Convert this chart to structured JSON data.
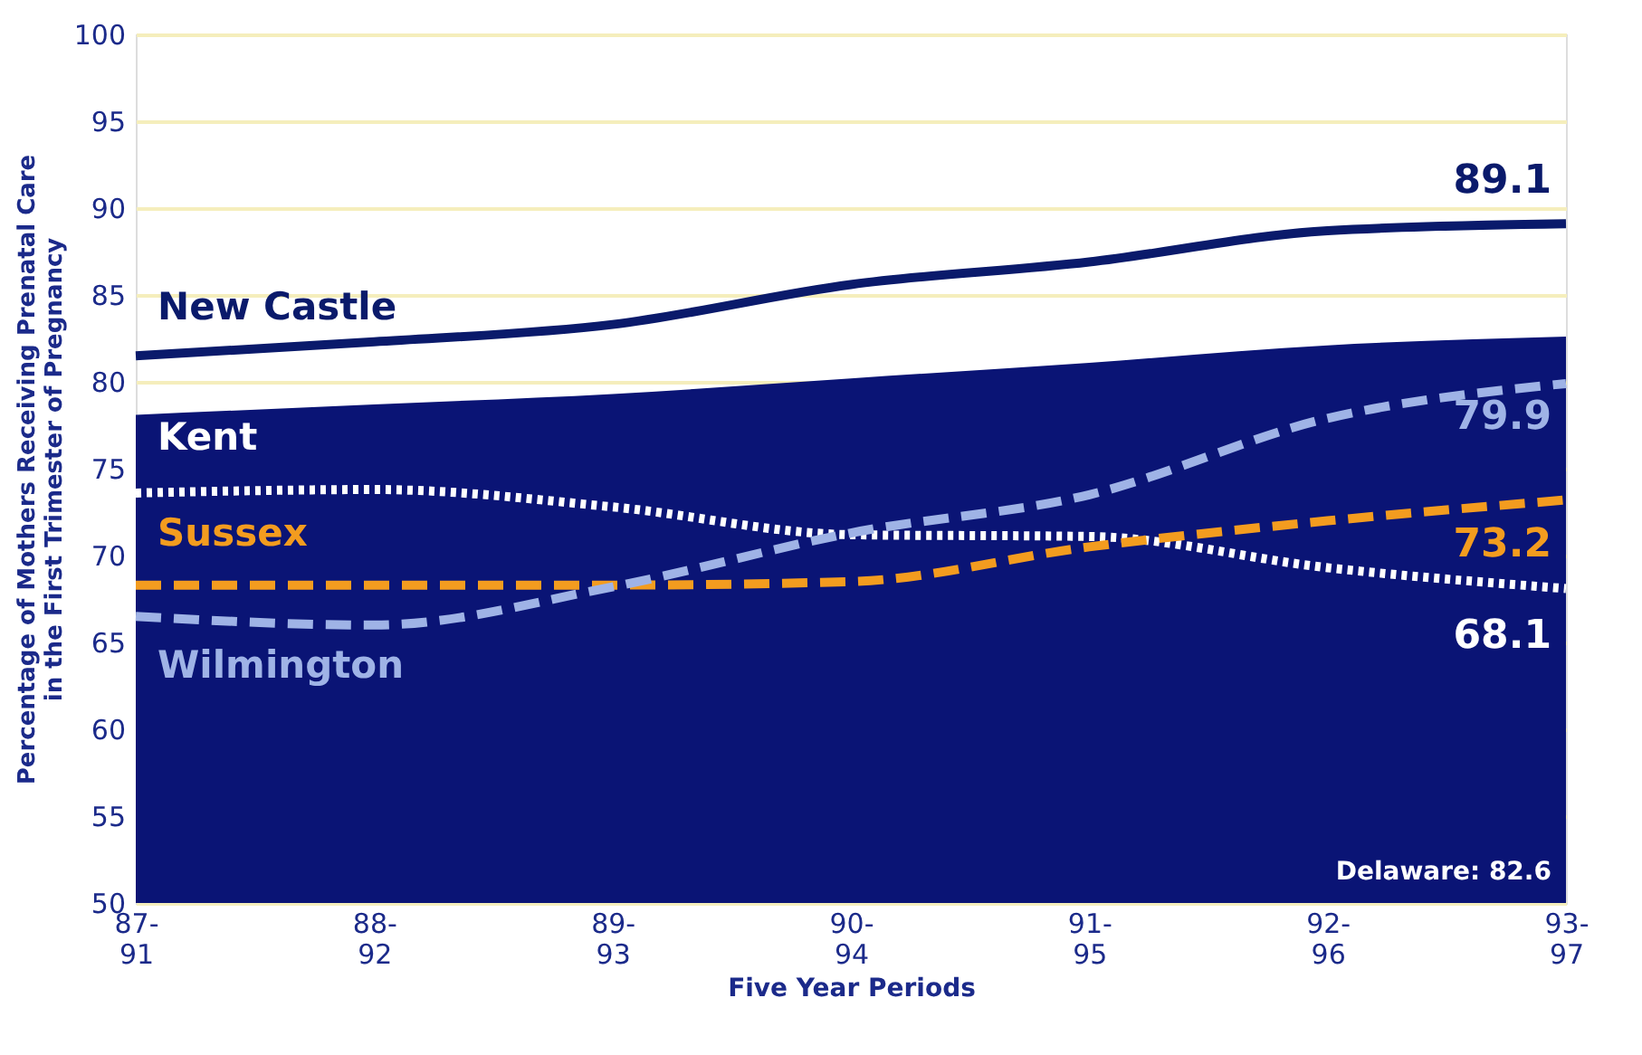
{
  "chart_data": {
    "type": "line",
    "xlabel": "Five Year Periods",
    "ylabel": "Percentage of Mothers Receiving Prenatal Care\nin the First Trimester of Pregnancy",
    "categories": [
      "87-91",
      "88-92",
      "89-93",
      "90-94",
      "91-95",
      "92-96",
      "93-97"
    ],
    "series": [
      {
        "name": null,
        "type": "area",
        "color": "#0a1475",
        "values": [
          78.1,
          78.7,
          79.3,
          80.2,
          81.1,
          82.1,
          82.6
        ]
      },
      {
        "name": "New Castle",
        "color": "#0a1a6b",
        "line_style": "solid",
        "values": [
          81.5,
          82.3,
          83.3,
          85.6,
          86.9,
          88.7,
          89.1
        ],
        "value_labels": [
          null,
          null,
          null,
          null,
          null,
          null,
          "89.1"
        ]
      },
      {
        "name": "Kent",
        "color": "#ffffff",
        "line_style": "dotted",
        "values": [
          73.6,
          73.8,
          72.8,
          71.2,
          71.1,
          69.3,
          68.1
        ],
        "value_labels": [
          null,
          null,
          null,
          null,
          null,
          null,
          "68.1"
        ]
      },
      {
        "name": "Sussex",
        "color": "#f39c1f",
        "line_style": "dashed",
        "values": [
          68.3,
          68.3,
          68.3,
          68.5,
          70.5,
          72.0,
          73.2
        ],
        "value_labels": [
          null,
          null,
          null,
          null,
          null,
          null,
          "73.2"
        ]
      },
      {
        "name": "Wilmington",
        "color": "#9fb3e6",
        "line_style": "dashed",
        "values": [
          66.5,
          66.0,
          68.2,
          71.3,
          73.5,
          77.9,
          79.9
        ],
        "value_labels": [
          null,
          null,
          null,
          null,
          null,
          null,
          "79.9"
        ]
      }
    ],
    "annotations": [
      "Delaware: 82.6"
    ],
    "ylim": [
      50,
      100
    ],
    "yticks": [
      50,
      55,
      60,
      65,
      70,
      75,
      80,
      85,
      90,
      95,
      100
    ],
    "grid": "y"
  }
}
